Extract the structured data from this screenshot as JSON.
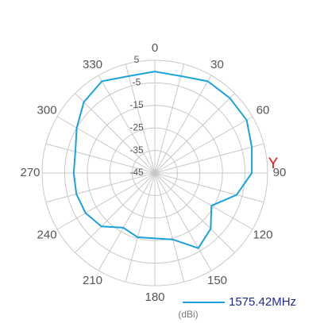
{
  "chart_data": {
    "type": "polar",
    "theta": [
      0,
      15,
      30,
      45,
      60,
      75,
      90,
      105,
      120,
      135,
      150,
      165,
      180,
      195,
      210,
      225,
      240,
      255,
      270,
      285,
      300,
      315,
      330,
      345
    ],
    "series": [
      {
        "name": "1575.42MHz",
        "color": "#1ba1dd",
        "values": [
          0,
          -0.5,
          2,
          2,
          2,
          -0.5,
          -2,
          -7.5,
          -16,
          -10,
          -6.5,
          -14.5,
          -16,
          -15.5,
          -17,
          -11.5,
          -9.5,
          -9,
          -9,
          -8.5,
          -5,
          -0.5,
          2,
          -0.5
        ]
      }
    ],
    "rlim": [
      -45,
      5
    ],
    "rticks": [
      -45,
      -35,
      -25,
      -15,
      -5,
      5
    ],
    "thetaticks": [
      0,
      30,
      60,
      90,
      120,
      150,
      180,
      210,
      240,
      270,
      300,
      330
    ],
    "annotation": "Y",
    "r_label": "(dBi)",
    "grid": true
  }
}
